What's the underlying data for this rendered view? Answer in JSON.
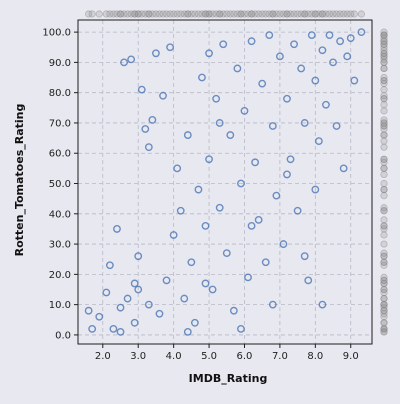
{
  "chart_data": {
    "type": "scatter",
    "xlabel": "IMDB_Rating",
    "ylabel": "Rotten_Tomatoes_Rating",
    "xlim": [
      1.3,
      9.6
    ],
    "ylim": [
      -3,
      104
    ],
    "x_ticks": [
      2.0,
      3.0,
      4.0,
      5.0,
      6.0,
      7.0,
      8.0,
      9.0
    ],
    "x_tick_labels": [
      "2.0",
      "3.0",
      "4.0",
      "5.0",
      "6.0",
      "7.0",
      "8.0",
      "9.0"
    ],
    "y_ticks": [
      0,
      10,
      20,
      30,
      40,
      50,
      60,
      70,
      80,
      90,
      100
    ],
    "y_tick_labels": [
      "0.0",
      "10.0",
      "20.0",
      "30.0",
      "40.0",
      "50.0",
      "60.0",
      "70.0",
      "80.0",
      "90.0",
      "100.0"
    ],
    "grid": true,
    "marker": "open-circle",
    "colors": {
      "points": "#4a74b4",
      "marginal": "#8c8c8c",
      "grid": "#b9b9c8",
      "background": "#e8e8f0"
    },
    "series": [
      {
        "values": [
          [
            1.6,
            8
          ],
          [
            1.7,
            2
          ],
          [
            1.9,
            6
          ],
          [
            2.1,
            14
          ],
          [
            2.2,
            23
          ],
          [
            2.3,
            2
          ],
          [
            2.4,
            35
          ],
          [
            2.5,
            1
          ],
          [
            2.5,
            9
          ],
          [
            2.6,
            90
          ],
          [
            2.7,
            12
          ],
          [
            2.8,
            91
          ],
          [
            2.9,
            4
          ],
          [
            3.0,
            15
          ],
          [
            3.0,
            26
          ],
          [
            3.1,
            81
          ],
          [
            3.2,
            68
          ],
          [
            3.3,
            62
          ],
          [
            3.4,
            71
          ],
          [
            3.5,
            93
          ],
          [
            3.6,
            7
          ],
          [
            3.7,
            79
          ],
          [
            3.8,
            18
          ],
          [
            3.9,
            95
          ],
          [
            4.0,
            33
          ],
          [
            4.1,
            55
          ],
          [
            4.2,
            41
          ],
          [
            4.3,
            12
          ],
          [
            4.4,
            66
          ],
          [
            4.5,
            24
          ],
          [
            4.6,
            4
          ],
          [
            4.7,
            48
          ],
          [
            4.8,
            85
          ],
          [
            4.9,
            36
          ],
          [
            5.0,
            93
          ],
          [
            5.0,
            58
          ],
          [
            5.1,
            15
          ],
          [
            5.2,
            78
          ],
          [
            5.3,
            42
          ],
          [
            5.4,
            96
          ],
          [
            5.5,
            27
          ],
          [
            5.6,
            66
          ],
          [
            5.7,
            8
          ],
          [
            5.8,
            88
          ],
          [
            5.9,
            50
          ],
          [
            6.0,
            74
          ],
          [
            6.1,
            19
          ],
          [
            6.2,
            97
          ],
          [
            6.3,
            57
          ],
          [
            6.4,
            38
          ],
          [
            6.5,
            83
          ],
          [
            6.6,
            24
          ],
          [
            6.7,
            99
          ],
          [
            6.8,
            69
          ],
          [
            6.9,
            46
          ],
          [
            7.0,
            92
          ],
          [
            7.1,
            30
          ],
          [
            7.2,
            78
          ],
          [
            7.3,
            58
          ],
          [
            7.4,
            96
          ],
          [
            7.5,
            41
          ],
          [
            7.6,
            88
          ],
          [
            7.7,
            70
          ],
          [
            7.8,
            18
          ],
          [
            7.9,
            99
          ],
          [
            8.0,
            84
          ],
          [
            8.1,
            64
          ],
          [
            8.2,
            94
          ],
          [
            8.3,
            76
          ],
          [
            8.4,
            99
          ],
          [
            8.5,
            90
          ],
          [
            8.6,
            69
          ],
          [
            8.7,
            97
          ],
          [
            8.8,
            55
          ],
          [
            8.9,
            92
          ],
          [
            9.0,
            98
          ],
          [
            9.1,
            84
          ],
          [
            9.3,
            100
          ],
          [
            8.2,
            10
          ],
          [
            7.7,
            26
          ],
          [
            6.8,
            10
          ],
          [
            5.9,
            2
          ],
          [
            4.4,
            1
          ],
          [
            3.3,
            10
          ],
          [
            2.9,
            17
          ],
          [
            6.2,
            36
          ],
          [
            4.9,
            17
          ],
          [
            7.2,
            53
          ],
          [
            5.3,
            70
          ],
          [
            8.0,
            48
          ]
        ]
      }
    ]
  }
}
